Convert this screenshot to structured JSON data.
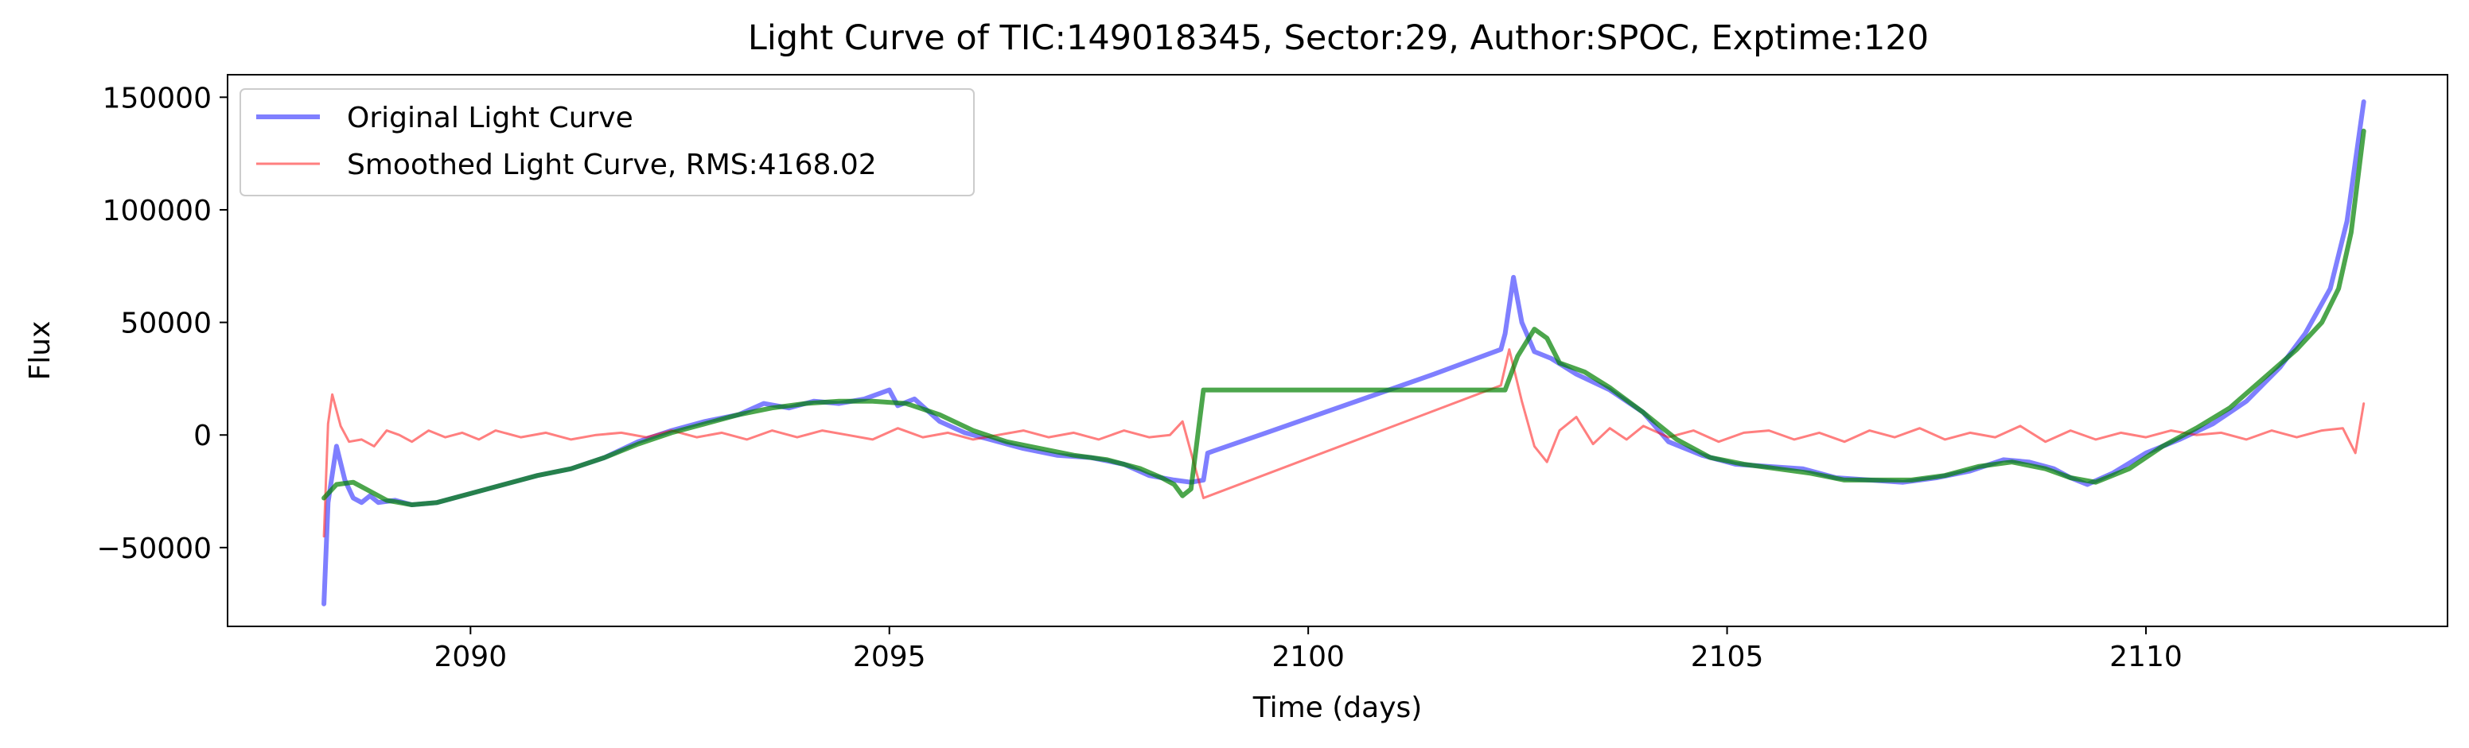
{
  "chart_data": {
    "type": "line",
    "title": "Light Curve of TIC:149018345, Sector:29, Author:SPOC, Exptime:120",
    "xlabel": "Time (days)",
    "ylabel": "Flux",
    "xlim": [
      2087.1,
      2113.6
    ],
    "ylim": [
      -85000,
      160000
    ],
    "xticks": [
      2090,
      2095,
      2100,
      2105,
      2110
    ],
    "xtick_labels": [
      "2090",
      "2095",
      "2100",
      "2105",
      "2110"
    ],
    "yticks": [
      -50000,
      0,
      50000,
      100000,
      150000
    ],
    "ytick_labels": [
      "−50000",
      "0",
      "50000",
      "100000",
      "150000"
    ],
    "grid": false,
    "legend_position": "top-left",
    "series": [
      {
        "name": "Original Light Curve",
        "color": "#0000ff",
        "opacity": 0.5,
        "x": [
          2088.25,
          2088.3,
          2088.4,
          2088.5,
          2088.6,
          2088.7,
          2088.8,
          2088.9,
          2089.1,
          2089.3,
          2089.6,
          2090.0,
          2090.4,
          2090.8,
          2091.2,
          2091.6,
          2092.0,
          2092.4,
          2092.8,
          2093.2,
          2093.5,
          2093.8,
          2094.1,
          2094.4,
          2094.7,
          2095.0,
          2095.1,
          2095.3,
          2095.6,
          2095.9,
          2096.2,
          2096.6,
          2097.0,
          2097.4,
          2097.8,
          2098.1,
          2098.4,
          2098.6,
          2098.75,
          2098.8,
          2099.5,
          2100.5,
          2101.5,
          2102.3,
          2102.35,
          2102.45,
          2102.55,
          2102.7,
          2102.9,
          2103.2,
          2103.6,
          2104.0,
          2104.3,
          2104.7,
          2105.1,
          2105.5,
          2105.9,
          2106.3,
          2106.7,
          2107.1,
          2107.5,
          2107.9,
          2108.3,
          2108.6,
          2108.9,
          2109.1,
          2109.3,
          2109.6,
          2110.0,
          2110.4,
          2110.8,
          2111.2,
          2111.6,
          2111.9,
          2112.2,
          2112.4,
          2112.6
        ],
        "y": [
          -75000,
          -30000,
          -5000,
          -20000,
          -28000,
          -30000,
          -27000,
          -30000,
          -29000,
          -31000,
          -30000,
          -26000,
          -22000,
          -18000,
          -15000,
          -10000,
          -3000,
          2000,
          6000,
          9000,
          14000,
          12000,
          15000,
          14000,
          16000,
          20000,
          13000,
          16000,
          6000,
          1000,
          -2000,
          -6000,
          -9000,
          -10000,
          -13000,
          -18000,
          -20000,
          -21000,
          -20000,
          -8000,
          1000,
          14000,
          27000,
          38000,
          45000,
          70000,
          50000,
          37000,
          34000,
          27000,
          20000,
          10000,
          -3000,
          -9000,
          -13000,
          -14000,
          -15000,
          -19000,
          -20000,
          -21000,
          -19000,
          -16000,
          -11000,
          -12000,
          -15000,
          -19000,
          -22000,
          -17000,
          -8000,
          -2000,
          5000,
          15000,
          30000,
          45000,
          65000,
          95000,
          148000
        ]
      },
      {
        "name": "Smoothed Light Curve, RMS:4168.02",
        "color": "#ff0000",
        "opacity": 0.5,
        "x": [
          2088.25,
          2088.3,
          2088.35,
          2088.45,
          2088.55,
          2088.7,
          2088.85,
          2089.0,
          2089.15,
          2089.3,
          2089.5,
          2089.7,
          2089.9,
          2090.1,
          2090.3,
          2090.6,
          2090.9,
          2091.2,
          2091.5,
          2091.8,
          2092.1,
          2092.4,
          2092.7,
          2093.0,
          2093.3,
          2093.6,
          2093.9,
          2094.2,
          2094.5,
          2094.8,
          2095.1,
          2095.4,
          2095.7,
          2096.0,
          2096.3,
          2096.6,
          2096.9,
          2097.2,
          2097.5,
          2097.8,
          2098.1,
          2098.35,
          2098.5,
          2098.75,
          2102.3,
          2102.4,
          2102.55,
          2102.7,
          2102.85,
          2103.0,
          2103.2,
          2103.4,
          2103.6,
          2103.8,
          2104.0,
          2104.3,
          2104.6,
          2104.9,
          2105.2,
          2105.5,
          2105.8,
          2106.1,
          2106.4,
          2106.7,
          2107.0,
          2107.3,
          2107.6,
          2107.9,
          2108.2,
          2108.5,
          2108.8,
          2109.1,
          2109.4,
          2109.7,
          2110.0,
          2110.3,
          2110.6,
          2110.9,
          2111.2,
          2111.5,
          2111.8,
          2112.1,
          2112.35,
          2112.5,
          2112.6
        ],
        "y": [
          -45000,
          5000,
          18000,
          4000,
          -3000,
          -2000,
          -5000,
          2000,
          0,
          -3000,
          2000,
          -1000,
          1000,
          -2000,
          2000,
          -1000,
          1000,
          -2000,
          0,
          1000,
          -1000,
          2000,
          -1000,
          1000,
          -2000,
          2000,
          -1000,
          2000,
          0,
          -2000,
          3000,
          -1000,
          1000,
          -2000,
          0,
          2000,
          -1000,
          1000,
          -2000,
          2000,
          -1000,
          0,
          6000,
          -28000,
          22000,
          38000,
          15000,
          -5000,
          -12000,
          2000,
          8000,
          -4000,
          3000,
          -2000,
          4000,
          -1000,
          2000,
          -3000,
          1000,
          2000,
          -2000,
          1000,
          -3000,
          2000,
          -1000,
          3000,
          -2000,
          1000,
          -1000,
          4000,
          -3000,
          2000,
          -2000,
          1000,
          -1000,
          2000,
          0,
          1000,
          -2000,
          2000,
          -1000,
          2000,
          3000,
          -8000,
          14000
        ]
      },
      {
        "name": "",
        "color": "#008000",
        "opacity": 0.7,
        "x": [
          2088.25,
          2088.4,
          2088.6,
          2088.8,
          2089.0,
          2089.3,
          2089.6,
          2090.0,
          2090.4,
          2090.8,
          2091.2,
          2091.6,
          2092.0,
          2092.4,
          2092.8,
          2093.2,
          2093.6,
          2094.0,
          2094.4,
          2094.8,
          2095.2,
          2095.6,
          2096.0,
          2096.4,
          2096.8,
          2097.2,
          2097.6,
          2098.0,
          2098.25,
          2098.4,
          2098.5,
          2098.6,
          2098.75,
          2102.35,
          2102.5,
          2102.7,
          2102.85,
          2103.0,
          2103.3,
          2103.6,
          2104.0,
          2104.4,
          2104.8,
          2105.2,
          2105.6,
          2106.0,
          2106.4,
          2106.8,
          2107.2,
          2107.6,
          2108.0,
          2108.4,
          2108.8,
          2109.1,
          2109.4,
          2109.8,
          2110.2,
          2110.6,
          2111.0,
          2111.4,
          2111.8,
          2112.1,
          2112.3,
          2112.45,
          2112.6
        ],
        "y": [
          -28000,
          -22000,
          -21000,
          -25000,
          -29000,
          -31000,
          -30000,
          -26000,
          -22000,
          -18000,
          -15000,
          -10000,
          -4000,
          1000,
          5000,
          9000,
          12000,
          14000,
          15000,
          15000,
          14000,
          9000,
          2000,
          -3000,
          -6000,
          -9000,
          -11000,
          -15000,
          -19000,
          -22000,
          -27000,
          -24000,
          20000,
          20000,
          35000,
          47000,
          43000,
          32000,
          28000,
          21000,
          10000,
          -2000,
          -10000,
          -13000,
          -15000,
          -17000,
          -20000,
          -20000,
          -20000,
          -18000,
          -14000,
          -12000,
          -15000,
          -19000,
          -21000,
          -15000,
          -5000,
          3000,
          12000,
          25000,
          38000,
          50000,
          65000,
          90000,
          135000
        ]
      }
    ]
  }
}
